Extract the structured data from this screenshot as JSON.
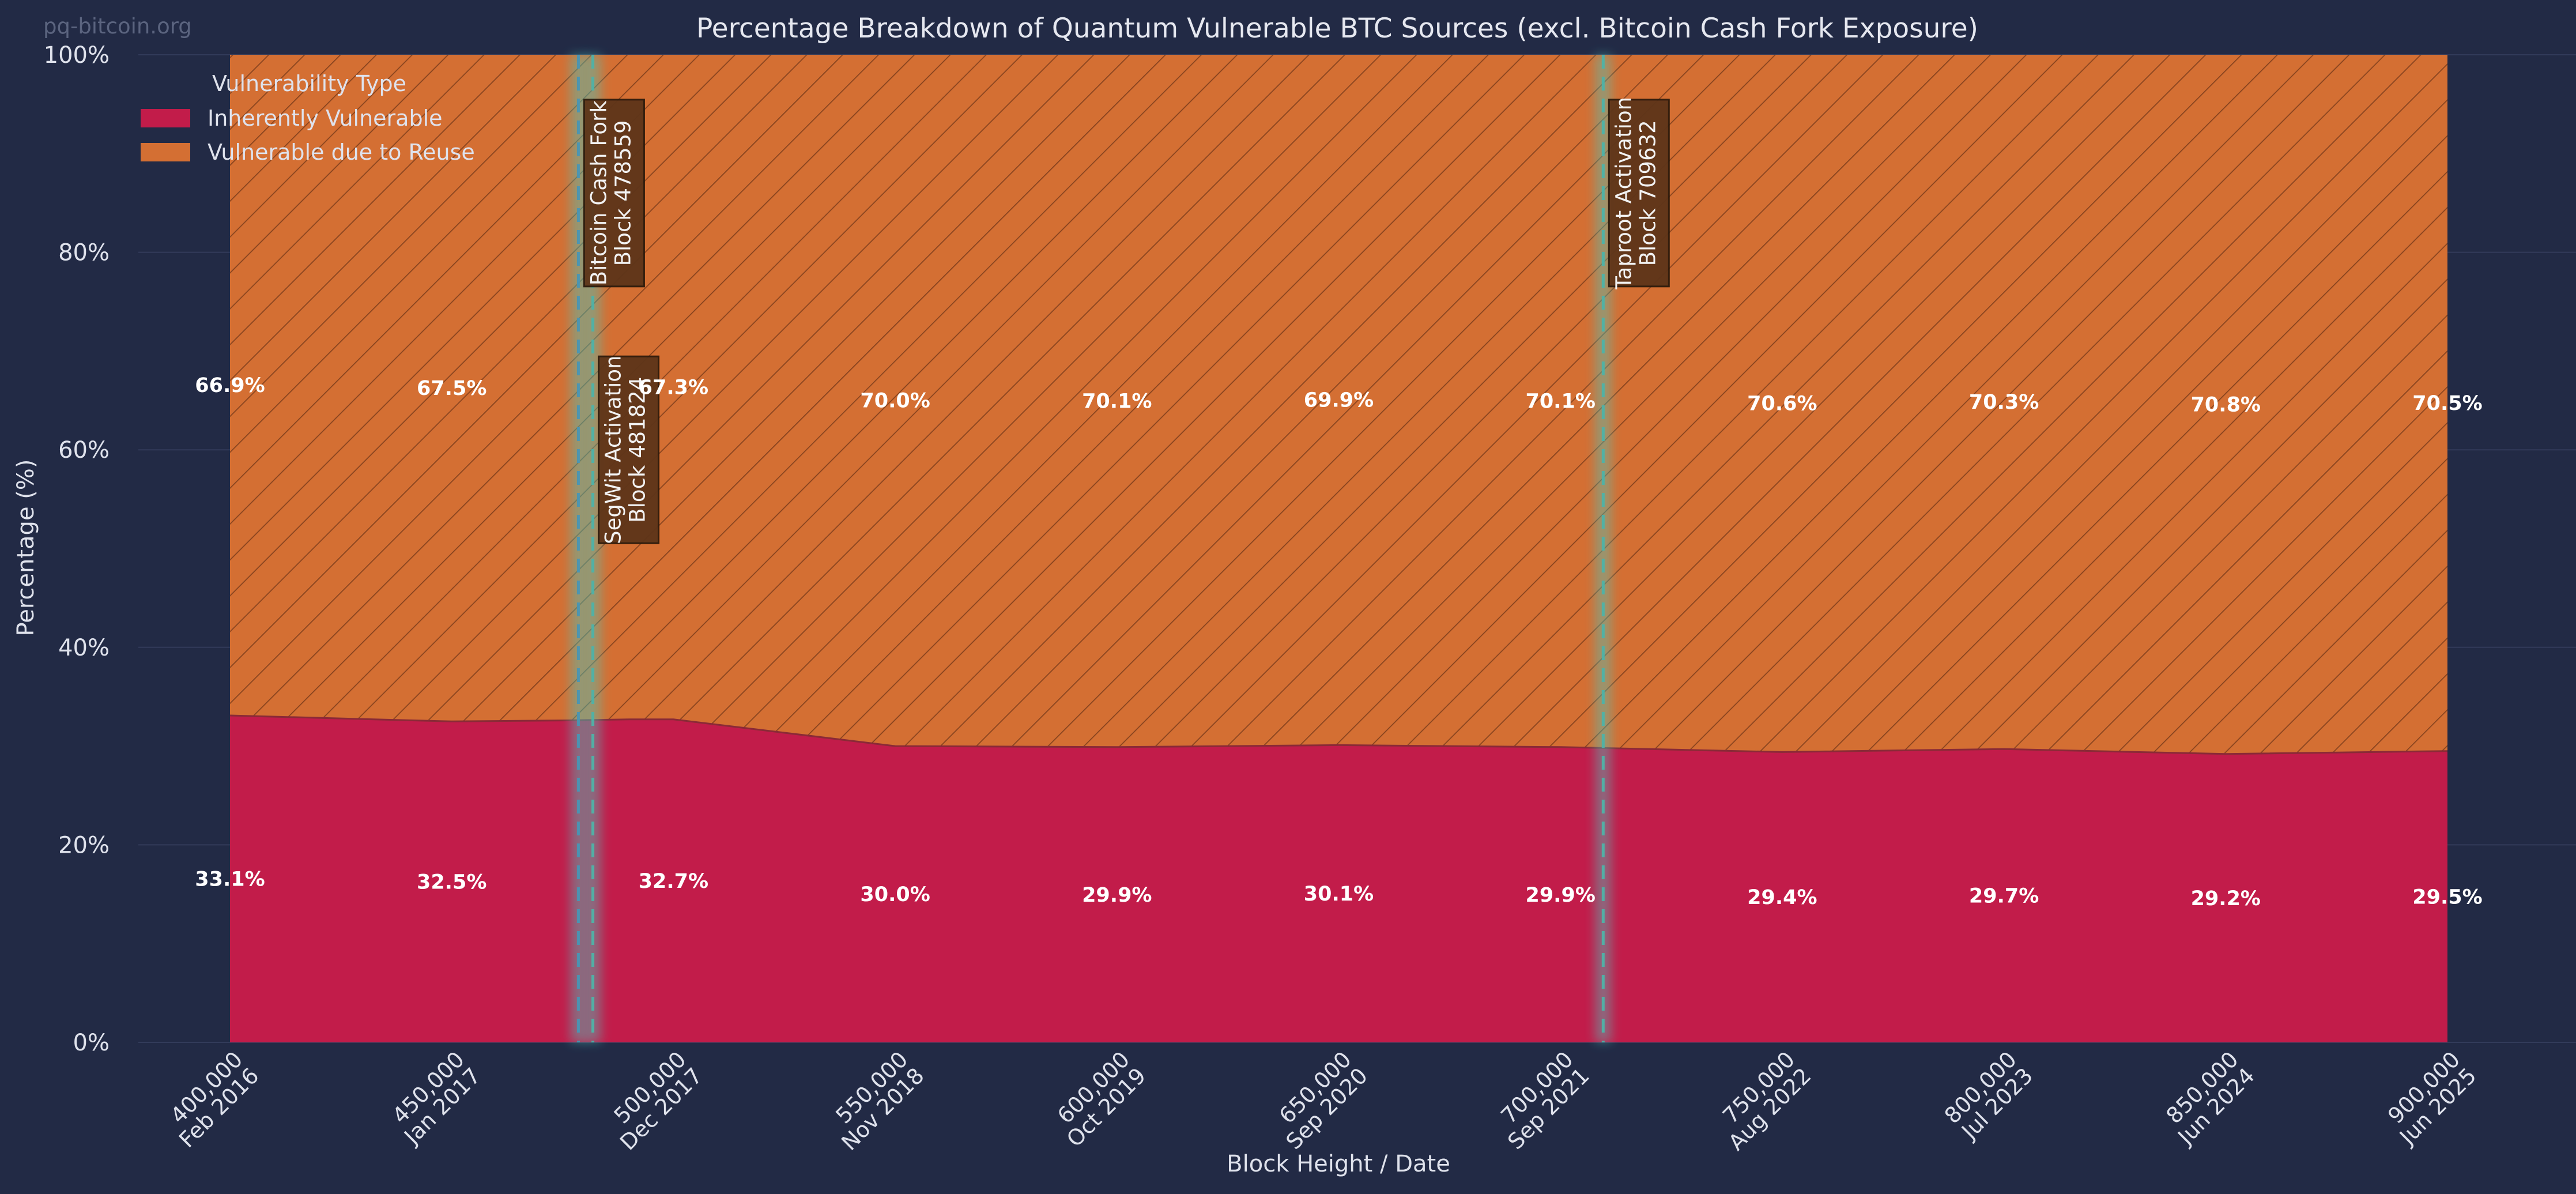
{
  "watermark": "pq-bitcoin.org",
  "chart_data": {
    "type": "area",
    "stacked": true,
    "title": "Percentage Breakdown of Quantum Vulnerable BTC Sources (excl. Bitcoin Cash Fork Exposure)",
    "xlabel": "Block Height / Date",
    "ylabel": "Percentage (%)",
    "xlim": [
      400000,
      900000
    ],
    "ylim": [
      0,
      100
    ],
    "grid": true,
    "legend": {
      "title": "Vulnerability Type",
      "position": "top-left"
    },
    "x_ticks": [
      {
        "value": 400000,
        "line1": "400,000",
        "line2": "Feb 2016"
      },
      {
        "value": 450000,
        "line1": "450,000",
        "line2": "Jan 2017"
      },
      {
        "value": 500000,
        "line1": "500,000",
        "line2": "Dec 2017"
      },
      {
        "value": 550000,
        "line1": "550,000",
        "line2": "Nov 2018"
      },
      {
        "value": 600000,
        "line1": "600,000",
        "line2": "Oct 2019"
      },
      {
        "value": 650000,
        "line1": "650,000",
        "line2": "Sep 2020"
      },
      {
        "value": 700000,
        "line1": "700,000",
        "line2": "Sep 2021"
      },
      {
        "value": 750000,
        "line1": "750,000",
        "line2": "Aug 2022"
      },
      {
        "value": 800000,
        "line1": "800,000",
        "line2": "Jul 2023"
      },
      {
        "value": 850000,
        "line1": "850,000",
        "line2": "Jun 2024"
      },
      {
        "value": 900000,
        "line1": "900,000",
        "line2": "Jun 2025"
      }
    ],
    "y_ticks": [
      {
        "value": 0,
        "label": "0%"
      },
      {
        "value": 20,
        "label": "20%"
      },
      {
        "value": 40,
        "label": "40%"
      },
      {
        "value": 60,
        "label": "60%"
      },
      {
        "value": 80,
        "label": "80%"
      },
      {
        "value": 100,
        "label": "100%"
      }
    ],
    "x": [
      400000,
      450000,
      475000,
      490000,
      500000,
      550000,
      600000,
      650000,
      700000,
      750000,
      800000,
      850000,
      900000
    ],
    "series": [
      {
        "name": "Inherently Vulnerable",
        "color": "#c21c4a",
        "values": [
          33.1,
          32.5,
          32.6,
          32.7,
          32.7,
          30.0,
          29.9,
          30.1,
          29.9,
          29.4,
          29.7,
          29.2,
          29.5
        ]
      },
      {
        "name": "Vulnerable due to Reuse",
        "color": "#d46f33",
        "hatch": true,
        "values": [
          66.9,
          67.5,
          67.4,
          67.3,
          67.3,
          70.0,
          70.1,
          69.9,
          70.1,
          70.6,
          70.3,
          70.8,
          70.5
        ]
      }
    ],
    "data_labels": [
      {
        "x": 400000,
        "inherent": "33.1%",
        "inherent_value": 33.1,
        "reuse": "66.9%",
        "reuse_value": 66.9
      },
      {
        "x": 450000,
        "inherent": "32.5%",
        "inherent_value": 32.5,
        "reuse": "67.5%",
        "reuse_value": 67.5
      },
      {
        "x": 500000,
        "inherent": "32.7%",
        "inherent_value": 32.7,
        "reuse": "67.3%",
        "reuse_value": 67.3
      },
      {
        "x": 550000,
        "inherent": "30.0%",
        "inherent_value": 30.0,
        "reuse": "70.0%",
        "reuse_value": 70.0
      },
      {
        "x": 600000,
        "inherent": "29.9%",
        "inherent_value": 29.9,
        "reuse": "70.1%",
        "reuse_value": 70.1
      },
      {
        "x": 650000,
        "inherent": "30.1%",
        "inherent_value": 30.1,
        "reuse": "69.9%",
        "reuse_value": 69.9
      },
      {
        "x": 700000,
        "inherent": "29.9%",
        "inherent_value": 29.9,
        "reuse": "70.1%",
        "reuse_value": 70.1
      },
      {
        "x": 750000,
        "inherent": "29.4%",
        "inherent_value": 29.4,
        "reuse": "70.6%",
        "reuse_value": 70.6
      },
      {
        "x": 800000,
        "inherent": "29.7%",
        "inherent_value": 29.7,
        "reuse": "70.3%",
        "reuse_value": 70.3
      },
      {
        "x": 850000,
        "inherent": "29.2%",
        "inherent_value": 29.2,
        "reuse": "70.8%",
        "reuse_value": 70.8
      },
      {
        "x": 900000,
        "inherent": "29.5%",
        "inherent_value": 29.5,
        "reuse": "70.5%",
        "reuse_value": 70.5
      }
    ],
    "events": [
      {
        "block": 478559,
        "line1": "Bitcoin Cash Fork",
        "line2": "Block 478559",
        "label_y": 86,
        "line_color": "#4a93b3"
      },
      {
        "block": 481824,
        "line1": "SegWit Activation",
        "line2": "Block 481824",
        "label_y": 60,
        "line_color": "#4fb3a8"
      },
      {
        "block": 709632,
        "line1": "Taproot Activation",
        "line2": "Block 709632",
        "label_y": 86,
        "line_color": "#4fb3a8"
      }
    ]
  }
}
